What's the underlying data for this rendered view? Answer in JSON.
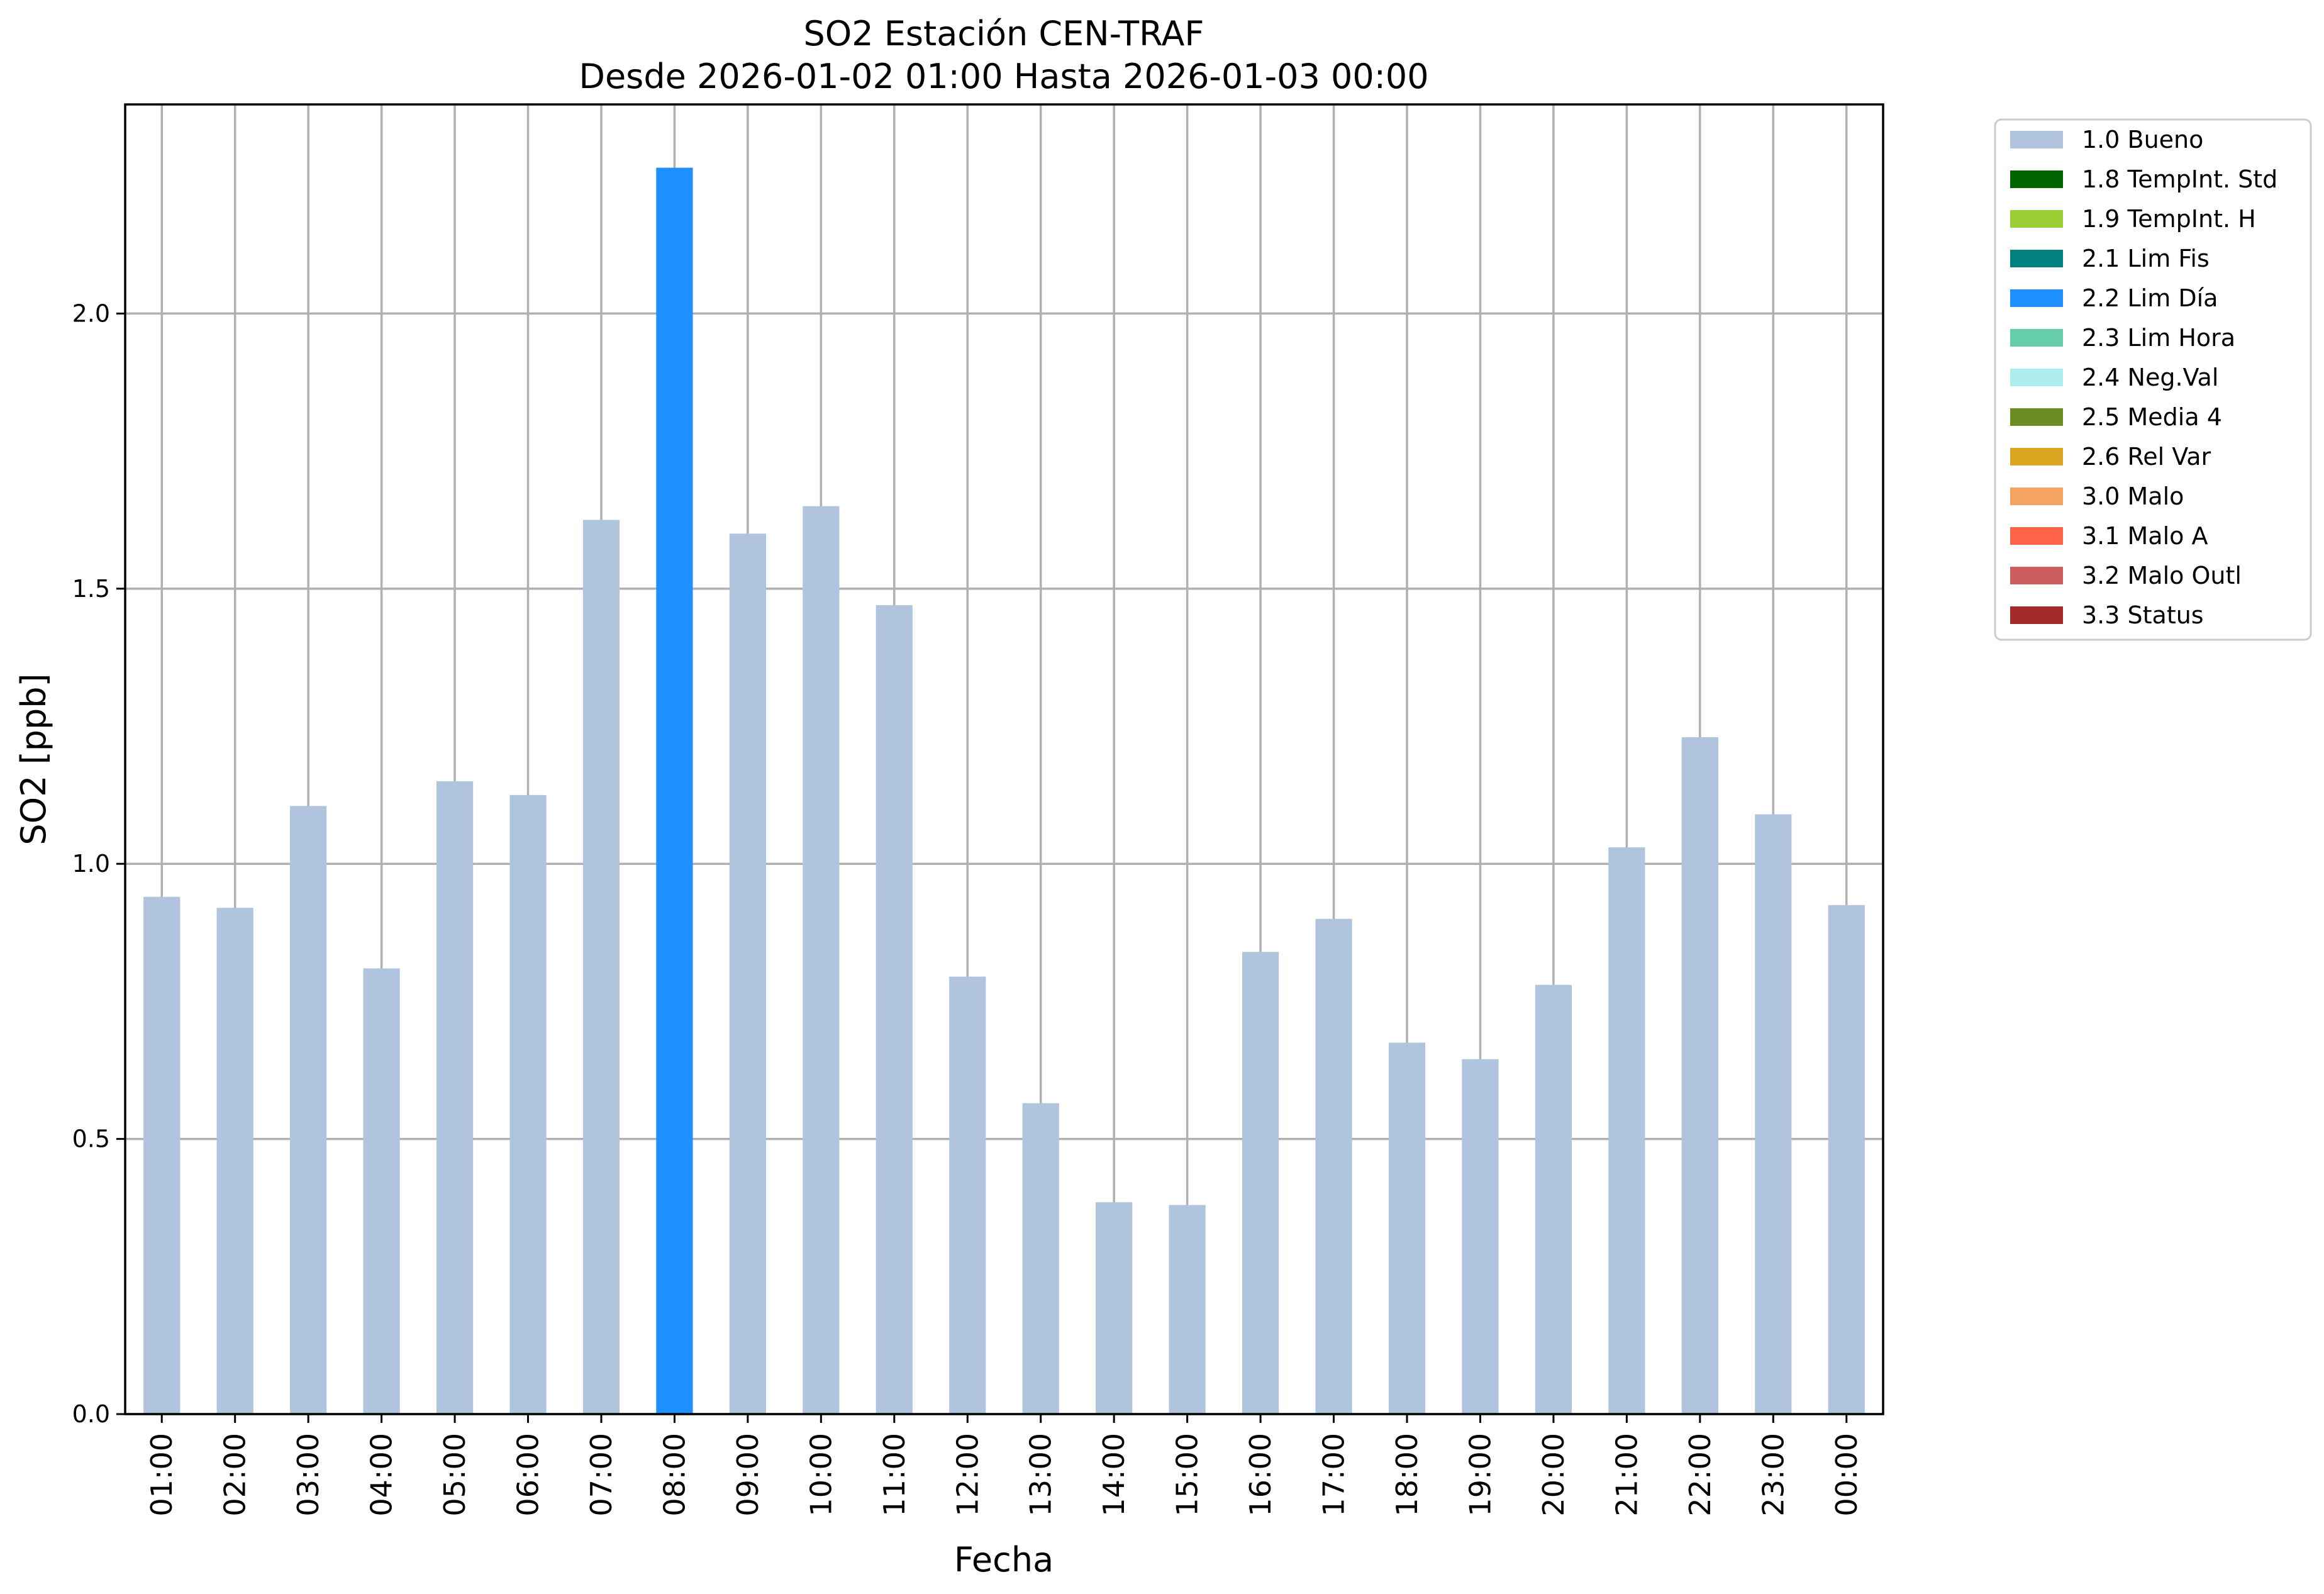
{
  "chart_data": {
    "type": "bar",
    "title": "SO2 Estación CEN-TRAF",
    "subtitle": "Desde 2026-01-02 01:00 Hasta 2026-01-03 00:00",
    "xlabel": "Fecha",
    "ylabel": "SO2 [ppb]",
    "ylim": [
      0,
      2.38
    ],
    "yticks": [
      0.0,
      0.5,
      1.0,
      1.5,
      2.0
    ],
    "ytick_labels": [
      "0.0",
      "0.5",
      "1.0",
      "1.5",
      "2.0"
    ],
    "grid": true,
    "legend_position": "outside-top-right",
    "categories": [
      "01:00",
      "02:00",
      "03:00",
      "04:00",
      "05:00",
      "06:00",
      "07:00",
      "08:00",
      "09:00",
      "10:00",
      "11:00",
      "12:00",
      "13:00",
      "14:00",
      "15:00",
      "16:00",
      "17:00",
      "18:00",
      "19:00",
      "20:00",
      "21:00",
      "22:00",
      "23:00",
      "00:00"
    ],
    "values": [
      0.94,
      0.92,
      1.105,
      0.81,
      1.15,
      1.125,
      1.625,
      2.265,
      1.6,
      1.65,
      1.47,
      0.795,
      0.565,
      0.385,
      0.38,
      0.84,
      0.9,
      0.675,
      0.645,
      0.78,
      1.03,
      1.23,
      1.09,
      0.925
    ],
    "flags": [
      "1.0 Bueno",
      "1.0 Bueno",
      "1.0 Bueno",
      "1.0 Bueno",
      "1.0 Bueno",
      "1.0 Bueno",
      "1.0 Bueno",
      "2.2 Lim Día",
      "1.0 Bueno",
      "1.0 Bueno",
      "1.0 Bueno",
      "1.0 Bueno",
      "1.0 Bueno",
      "1.0 Bueno",
      "1.0 Bueno",
      "1.0 Bueno",
      "1.0 Bueno",
      "1.0 Bueno",
      "1.0 Bueno",
      "1.0 Bueno",
      "1.0 Bueno",
      "1.0 Bueno",
      "1.0 Bueno",
      "1.0 Bueno"
    ],
    "legend": [
      {
        "label": "1.0 Bueno",
        "color": "#b0c4de"
      },
      {
        "label": "1.8 TempInt. Std",
        "color": "#006400"
      },
      {
        "label": "1.9 TempInt. H",
        "color": "#9acd32"
      },
      {
        "label": "2.1 Lim Fis",
        "color": "#008080"
      },
      {
        "label": "2.2 Lim Día",
        "color": "#1e90ff"
      },
      {
        "label": "2.3 Lim Hora",
        "color": "#66cdaa"
      },
      {
        "label": "2.4 Neg.Val",
        "color": "#afeeee"
      },
      {
        "label": "2.5 Media 4",
        "color": "#6b8e23"
      },
      {
        "label": "2.6 Rel Var",
        "color": "#daa520"
      },
      {
        "label": "3.0 Malo",
        "color": "#f4a460"
      },
      {
        "label": "3.1 Malo A",
        "color": "#ff6347"
      },
      {
        "label": "3.2 Malo Outl",
        "color": "#cd5c5c"
      },
      {
        "label": "3.3 Status",
        "color": "#a52a2a"
      }
    ]
  }
}
